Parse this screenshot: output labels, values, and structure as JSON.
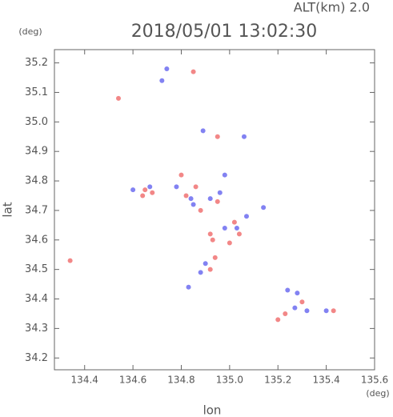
{
  "chart_data": {
    "type": "scatter",
    "title": "2018/05/01 13:02:30",
    "subtitle": "ALT(km) 2.0",
    "x_label": "lon",
    "y_label": "lat",
    "x_unit": "(deg)",
    "y_unit": "(deg)",
    "xlim": [
      134.275,
      135.6
    ],
    "ylim": [
      34.16,
      35.245
    ],
    "xticks": [
      134.4,
      134.6,
      134.8,
      {
        "value": 135,
        "label": "135.0"
      },
      135.2,
      135.4,
      135.6
    ],
    "yticks": [
      34.2,
      34.3,
      34.4,
      34.5,
      34.6,
      34.7,
      34.8,
      34.9,
      {
        "value": 35,
        "label": "35.0"
      },
      35.1,
      35.2
    ],
    "series": [
      {
        "color": "#f07272",
        "x": [
          134.34,
          134.54,
          134.85,
          134.95,
          134.65,
          134.68,
          134.8,
          134.82,
          134.88,
          134.95,
          134.92,
          135.02,
          135.04,
          134.92,
          134.94,
          134.93,
          135.2,
          135.23,
          135.3,
          135.43,
          134.86,
          135.0,
          134.64
        ],
        "values": [
          34.53,
          35.08,
          35.17,
          34.95,
          34.77,
          34.76,
          34.82,
          34.75,
          34.7,
          34.73,
          34.62,
          34.66,
          34.62,
          34.5,
          34.54,
          34.6,
          34.33,
          34.35,
          34.39,
          34.36,
          34.78,
          34.59,
          34.75
        ]
      },
      {
        "color": "#6c6cf0",
        "x": [
          134.72,
          134.74,
          134.89,
          135.06,
          134.6,
          134.78,
          134.85,
          134.92,
          134.96,
          134.98,
          134.98,
          135.07,
          134.9,
          134.88,
          134.83,
          135.14,
          135.27,
          135.32,
          135.28,
          135.24,
          135.4,
          134.84,
          135.03,
          134.67
        ],
        "values": [
          35.14,
          35.18,
          34.97,
          34.95,
          34.77,
          34.78,
          34.72,
          34.74,
          34.76,
          34.82,
          34.64,
          34.68,
          34.52,
          34.49,
          34.44,
          34.71,
          34.37,
          34.36,
          34.42,
          34.43,
          34.36,
          34.74,
          34.64,
          34.78
        ]
      }
    ]
  }
}
